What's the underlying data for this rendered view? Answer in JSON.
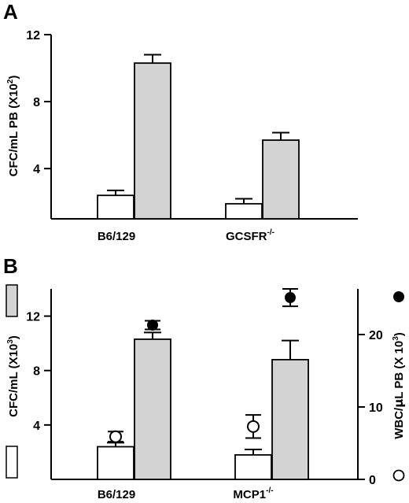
{
  "chart_data": [
    {
      "panel": "A",
      "type": "bar",
      "categories": [
        "B6/129",
        "GCSFR"
      ],
      "category_superscripts": [
        "",
        "-/-"
      ],
      "series": [
        {
          "values": [
            2.4,
            1.9
          ],
          "errors": [
            0.3,
            0.3
          ],
          "color": "#ffffff"
        },
        {
          "values": [
            10.3,
            5.7
          ],
          "errors": [
            0.5,
            0.45
          ],
          "color": "#d3d3d3"
        }
      ],
      "ylabel": "CFC/mL PB (X10",
      "ylabel_sup": "2",
      "ylabel_close": ")",
      "yticks": [
        "4",
        "8",
        "12"
      ],
      "ylim": [
        1,
        12
      ]
    },
    {
      "panel": "B",
      "type": "bar",
      "categories": [
        "B6/129",
        "MCP1"
      ],
      "category_superscripts": [
        "",
        "-/-"
      ],
      "series": [
        {
          "values": [
            2.4,
            1.8
          ],
          "errors": [
            0.3,
            0.4
          ],
          "color": "#ffffff"
        },
        {
          "values": [
            10.3,
            8.8
          ],
          "errors": [
            0.5,
            1.4
          ],
          "color": "#d3d3d3"
        }
      ],
      "ylabel": "CFC/mL (X10",
      "ylabel_sup": "3",
      "ylabel_close": ")",
      "yticks": [
        "4",
        "8",
        "12"
      ],
      "ylim": [
        0,
        14
      ],
      "y2label_pre": "WBC/",
      "y2label_mu": "μ",
      "y2label_post": "L PB (X 10",
      "y2label_sup": "3",
      "y2label_close": ")",
      "y2ticks": [
        "0",
        "10",
        "20"
      ],
      "y2lim": [
        0,
        26.3
      ],
      "points": [
        {
          "category": "B6/129",
          "open": 5.9,
          "open_err": 0.7,
          "filled": 21.3,
          "filled_err": 0.6
        },
        {
          "category": "MCP1",
          "open": 7.3,
          "open_err": 1.6,
          "filled": 25.1,
          "filled_err": 1.2
        }
      ]
    }
  ]
}
